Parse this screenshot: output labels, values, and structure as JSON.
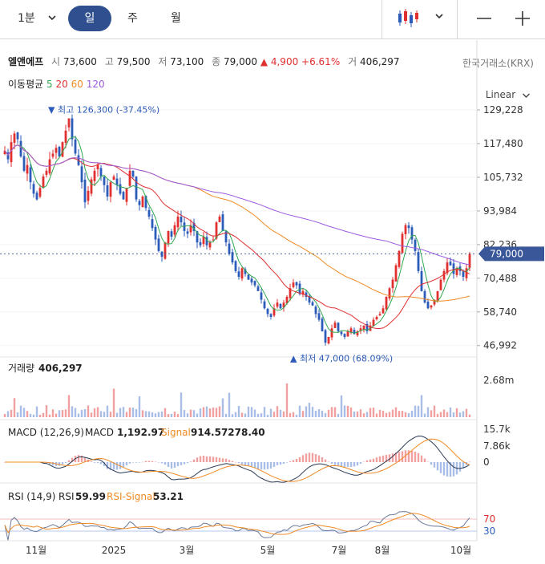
{
  "toolbar": {
    "interval_minute": "1분",
    "period_day": "일",
    "period_week": "주",
    "period_month": "월",
    "chart_type_icon": "candlestick-icon",
    "minimize_icon": "minus-icon",
    "add_icon": "plus-icon"
  },
  "quote": {
    "name": "엘앤에프",
    "open_label": "시",
    "open": "73,600",
    "high_label": "고",
    "high": "79,500",
    "low_label": "저",
    "low": "73,100",
    "close_label": "종",
    "close": "79,000",
    "change": "▲ 4,900",
    "change_pct": "+6.61%",
    "volume_label": "거",
    "volume": "406,297",
    "exchange": "한국거래소(KRX)"
  },
  "moving_average": {
    "label": "이동평균",
    "p5": "5",
    "p20": "20",
    "p60": "60",
    "p120": "120"
  },
  "scale_mode": "Linear",
  "colors": {
    "up": "#e03030",
    "down": "#2d5bb9",
    "ma5": "#2fa84f",
    "ma20": "#e03030",
    "ma60": "#f08a24",
    "ma120": "#9b59e0",
    "price_tag": "#3a5799",
    "signal": "#f08a24"
  },
  "chart_data": [
    {
      "type": "candlestick",
      "title": "",
      "y_ticks": [
        "129,228",
        "117,480",
        "105,732",
        "93,984",
        "82,236",
        "70,488",
        "58,740",
        "46,992"
      ],
      "ylim": [
        43000,
        134000
      ],
      "x_ticks": [
        "11월",
        "2025",
        "3월",
        "5월",
        "7월",
        "8월",
        "10월"
      ],
      "high_marker": "▼ 최고 126,300 (-37.45%)",
      "low_marker": "▲ 최저 47,000 (68.09%)",
      "last_price": "79,000",
      "close_series": [
        115000,
        112000,
        118000,
        121000,
        119000,
        113000,
        108000,
        110000,
        104000,
        100000,
        98000,
        102000,
        106000,
        108000,
        112000,
        114000,
        116000,
        113000,
        118000,
        122000,
        126300,
        119000,
        114000,
        110000,
        104000,
        97000,
        101000,
        105000,
        108000,
        110000,
        106000,
        103000,
        99000,
        104000,
        106000,
        103000,
        100000,
        98000,
        102000,
        108000,
        106000,
        98000,
        96000,
        99000,
        95000,
        92000,
        88000,
        84000,
        80000,
        78000,
        83000,
        87000,
        85000,
        89000,
        92000,
        90000,
        87000,
        86000,
        89000,
        87000,
        83000,
        82000,
        85000,
        82000,
        83000,
        84000,
        90000,
        92000,
        87000,
        83000,
        79000,
        76000,
        73000,
        71000,
        74000,
        72000,
        70000,
        69000,
        68000,
        66000,
        63000,
        60000,
        58000,
        57000,
        60000,
        62000,
        60000,
        62000,
        64000,
        67000,
        69000,
        68000,
        65000,
        66000,
        64000,
        62000,
        61000,
        58000,
        56000,
        52000,
        48000,
        50000,
        53000,
        55000,
        52000,
        51000,
        50000,
        52000,
        53000,
        51000,
        52000,
        53000,
        54000,
        52000,
        54000,
        56000,
        57000,
        58000,
        60000,
        64000,
        67000,
        70000,
        75000,
        80000,
        86000,
        89000,
        88000,
        84000,
        80000,
        73000,
        66000,
        62000,
        60000,
        61000,
        63000,
        66000,
        70000,
        73000,
        76000,
        75000,
        72000,
        74000,
        73000,
        71000,
        74000,
        79000
      ],
      "volume": {
        "label": "거래량",
        "value": "406,297",
        "y_tick": "2.68m"
      },
      "macd": {
        "label": "MACD (12,26,9)",
        "macd_label": "MACD",
        "macd_value": "1,192.97",
        "signal_label": "Signal",
        "signal_value": "914.57278.40",
        "y_ticks": [
          "15.7k",
          "7.86k",
          "0"
        ]
      },
      "rsi": {
        "label": "RSI (14,9)",
        "rsi_label": "RSI",
        "rsi_value": "59.99",
        "signal_label": "RSI-Signal",
        "signal_value": "53.21",
        "y_ticks": [
          "70",
          "30"
        ]
      }
    }
  ]
}
